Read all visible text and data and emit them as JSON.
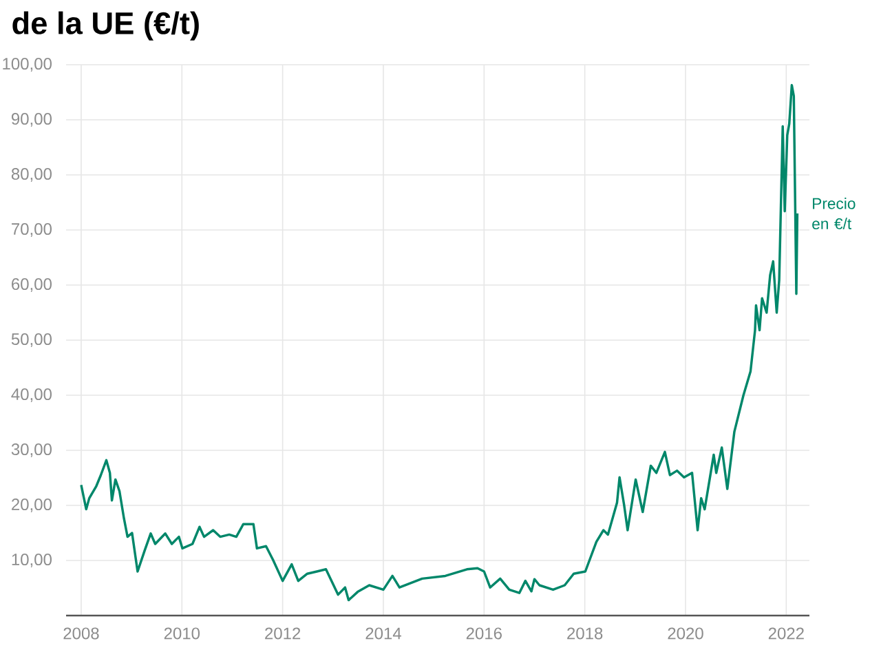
{
  "chart_data": {
    "type": "line",
    "title": "de la UE (€/t)",
    "x": [
      2008.0,
      2008.1,
      2008.16,
      2008.3,
      2008.39,
      2008.5,
      2008.57,
      2008.61,
      2008.68,
      2008.76,
      2008.85,
      2008.92,
      2009.01,
      2009.12,
      2009.26,
      2009.38,
      2009.47,
      2009.67,
      2009.8,
      2009.94,
      2010.01,
      2010.21,
      2010.35,
      2010.44,
      2010.62,
      2010.76,
      2010.94,
      2011.08,
      2011.22,
      2011.42,
      2011.49,
      2011.67,
      2011.81,
      2012.0,
      2012.18,
      2012.31,
      2012.49,
      2012.68,
      2012.86,
      2012.95,
      2013.1,
      2013.24,
      2013.31,
      2013.49,
      2013.72,
      2014.0,
      2014.18,
      2014.32,
      2014.77,
      2015.23,
      2015.66,
      2015.87,
      2016.0,
      2016.12,
      2016.32,
      2016.5,
      2016.7,
      2016.82,
      2016.94,
      2017.0,
      2017.1,
      2017.37,
      2017.6,
      2017.78,
      2018.01,
      2018.23,
      2018.37,
      2018.46,
      2018.64,
      2018.69,
      2018.78,
      2018.85,
      2019.01,
      2019.15,
      2019.31,
      2019.42,
      2019.59,
      2019.69,
      2019.83,
      2019.97,
      2020.13,
      2020.24,
      2020.31,
      2020.38,
      2020.56,
      2020.61,
      2020.72,
      2020.83,
      2020.97,
      2021.15,
      2021.29,
      2021.38,
      2021.4,
      2021.47,
      2021.52,
      2021.61,
      2021.68,
      2021.74,
      2021.81,
      2021.86,
      2021.93,
      2021.97,
      2022.02,
      2022.06,
      2022.11,
      2022.15,
      2022.2,
      2022.22
    ],
    "series": [
      {
        "name": "Precio en €/t",
        "color": "#00876a",
        "values": [
          23.7,
          19.3,
          21.3,
          23.5,
          25.5,
          28.2,
          25.9,
          20.9,
          24.7,
          22.6,
          17.6,
          14.3,
          15,
          8,
          11.8,
          14.9,
          13,
          14.9,
          13,
          14.3,
          12.2,
          13,
          16.1,
          14.3,
          15.5,
          14.3,
          14.7,
          14.3,
          16.6,
          16.6,
          12.2,
          12.6,
          10.1,
          6.3,
          9.3,
          6.3,
          7.6,
          8,
          8.4,
          6.7,
          3.8,
          5.1,
          2.8,
          4.3,
          5.5,
          4.7,
          7.2,
          5.1,
          6.7,
          7.2,
          8.4,
          8.6,
          8,
          5.1,
          6.7,
          4.7,
          4.1,
          6.3,
          4.4,
          6.6,
          5.5,
          4.7,
          5.5,
          7.6,
          8,
          13.4,
          15.5,
          14.7,
          20.5,
          25.1,
          20.1,
          15.5,
          24.7,
          18.8,
          27.2,
          25.9,
          29.7,
          25.5,
          26.3,
          25.1,
          25.9,
          15.5,
          21.3,
          19.3,
          29.2,
          25.9,
          30.5,
          23,
          33.4,
          40,
          44.3,
          51.8,
          56.3,
          51.8,
          57.6,
          55,
          61.8,
          64.3,
          55,
          60.9,
          88.8,
          73.4,
          87.2,
          89.3,
          96.3,
          94.3,
          58.4,
          73
        ]
      }
    ],
    "xlim": [
      2007.7,
      2022.46
    ],
    "ylim": [
      0,
      100
    ],
    "xticks": [
      2008,
      2010,
      2012,
      2014,
      2016,
      2018,
      2020,
      2022
    ],
    "yticks": [
      {
        "value": 10,
        "label": "10,00"
      },
      {
        "value": 20,
        "label": "20,00"
      },
      {
        "value": 30,
        "label": "30,00"
      },
      {
        "value": 40,
        "label": "40,00"
      },
      {
        "value": 50,
        "label": "50,00"
      },
      {
        "value": 60,
        "label": "60,00"
      },
      {
        "value": 70,
        "label": "70,00"
      },
      {
        "value": 80,
        "label": "80,00"
      },
      {
        "value": 90,
        "label": "90,00"
      },
      {
        "value": 100,
        "label": "100,00"
      }
    ],
    "grid": true,
    "marker": "none",
    "line_style": "solid"
  }
}
